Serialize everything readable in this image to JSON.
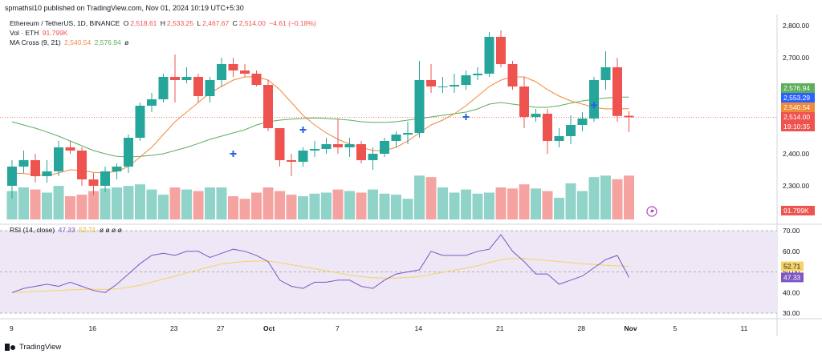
{
  "header": {
    "caption": "spmathsi10 published on TradingView.com, Nov 01, 2024 10:19 UTC+5:30"
  },
  "legend": {
    "symbol": "Ethereum / TetherUS, 1D, BINANCE",
    "o_label": "O",
    "o": "2,518.61",
    "h_label": "H",
    "h": "2,533.25",
    "l_label": "L",
    "l": "2,467.67",
    "c_label": "C",
    "c": "2,514.00",
    "change": "−4.61 (−0.18%)",
    "vol_label": "Vol · ETH",
    "vol_value": "91.799K",
    "ma_label": "MA Cross (9, 21)",
    "ma_fast": "2,540.54",
    "ma_slow": "2,576.94",
    "ma_null": "ø",
    "rsi_label": "RSI (14, close)",
    "rsi_value": "47.33",
    "rsi_ma": "52.71",
    "rsi_nulls": "ø ø ø ø"
  },
  "footer": {
    "brand": "TradingView"
  },
  "colors": {
    "up": "#26a69a",
    "down": "#ef5350",
    "vol_up": "#8fd3c9",
    "vol_down": "#f5a3a1",
    "ma_fast": "#f0893a",
    "ma_slow": "#5cae5c",
    "rsi": "#7e57c2",
    "rsi_ma": "#f5d365",
    "rsi_band": "#ede7f6",
    "cross": "#2f5fe0"
  },
  "chart_data": [
    {
      "type": "candlestick",
      "title": "Ethereum / TetherUS, 1D, BINANCE",
      "y_ticks": [
        "2,800.00",
        "2,700.00",
        "2,600.00",
        "2,500.00",
        "2,400.00",
        "2,300.00"
      ],
      "ylim": [
        2230,
        2830
      ],
      "x_ticks": [
        "9",
        "16",
        "23",
        "27",
        "Oct",
        "7",
        "14",
        "21",
        "28",
        "Nov",
        "5",
        "11"
      ],
      "x_tick_days": [
        0,
        7,
        14,
        18,
        22,
        28,
        35,
        42,
        49,
        53,
        57,
        63
      ],
      "grid": false,
      "candles": [
        {
          "d": 0,
          "o": 2300,
          "h": 2380,
          "l": 2260,
          "c": 2360
        },
        {
          "d": 1,
          "o": 2360,
          "h": 2410,
          "l": 2340,
          "c": 2380
        },
        {
          "d": 2,
          "o": 2380,
          "h": 2400,
          "l": 2310,
          "c": 2330
        },
        {
          "d": 3,
          "o": 2330,
          "h": 2380,
          "l": 2310,
          "c": 2345
        },
        {
          "d": 4,
          "o": 2345,
          "h": 2440,
          "l": 2330,
          "c": 2420
        },
        {
          "d": 5,
          "o": 2420,
          "h": 2440,
          "l": 2400,
          "c": 2410
        },
        {
          "d": 6,
          "o": 2410,
          "h": 2420,
          "l": 2300,
          "c": 2320
        },
        {
          "d": 7,
          "o": 2320,
          "h": 2340,
          "l": 2270,
          "c": 2300
        },
        {
          "d": 8,
          "o": 2300,
          "h": 2360,
          "l": 2280,
          "c": 2345
        },
        {
          "d": 9,
          "o": 2345,
          "h": 2370,
          "l": 2320,
          "c": 2360
        },
        {
          "d": 10,
          "o": 2360,
          "h": 2460,
          "l": 2340,
          "c": 2450
        },
        {
          "d": 11,
          "o": 2450,
          "h": 2560,
          "l": 2440,
          "c": 2550
        },
        {
          "d": 12,
          "o": 2550,
          "h": 2590,
          "l": 2530,
          "c": 2570
        },
        {
          "d": 13,
          "o": 2570,
          "h": 2650,
          "l": 2560,
          "c": 2640
        },
        {
          "d": 14,
          "o": 2640,
          "h": 2710,
          "l": 2560,
          "c": 2630
        },
        {
          "d": 15,
          "o": 2630,
          "h": 2670,
          "l": 2620,
          "c": 2640
        },
        {
          "d": 16,
          "o": 2640,
          "h": 2650,
          "l": 2560,
          "c": 2580
        },
        {
          "d": 17,
          "o": 2580,
          "h": 2640,
          "l": 2560,
          "c": 2630
        },
        {
          "d": 18,
          "o": 2630,
          "h": 2700,
          "l": 2610,
          "c": 2680
        },
        {
          "d": 19,
          "o": 2680,
          "h": 2700,
          "l": 2640,
          "c": 2660
        },
        {
          "d": 20,
          "o": 2660,
          "h": 2680,
          "l": 2640,
          "c": 2650
        },
        {
          "d": 21,
          "o": 2650,
          "h": 2660,
          "l": 2610,
          "c": 2615
        },
        {
          "d": 22,
          "o": 2615,
          "h": 2630,
          "l": 2470,
          "c": 2480
        },
        {
          "d": 23,
          "o": 2480,
          "h": 2480,
          "l": 2360,
          "c": 2380
        },
        {
          "d": 24,
          "o": 2380,
          "h": 2400,
          "l": 2330,
          "c": 2375
        },
        {
          "d": 25,
          "o": 2375,
          "h": 2420,
          "l": 2360,
          "c": 2410
        },
        {
          "d": 26,
          "o": 2410,
          "h": 2440,
          "l": 2390,
          "c": 2415
        },
        {
          "d": 27,
          "o": 2415,
          "h": 2450,
          "l": 2400,
          "c": 2430
        },
        {
          "d": 28,
          "o": 2430,
          "h": 2510,
          "l": 2400,
          "c": 2420
        },
        {
          "d": 29,
          "o": 2420,
          "h": 2450,
          "l": 2390,
          "c": 2430
        },
        {
          "d": 30,
          "o": 2430,
          "h": 2440,
          "l": 2370,
          "c": 2380
        },
        {
          "d": 31,
          "o": 2380,
          "h": 2420,
          "l": 2350,
          "c": 2400
        },
        {
          "d": 32,
          "o": 2400,
          "h": 2450,
          "l": 2390,
          "c": 2440
        },
        {
          "d": 33,
          "o": 2440,
          "h": 2470,
          "l": 2420,
          "c": 2460
        },
        {
          "d": 34,
          "o": 2460,
          "h": 2500,
          "l": 2430,
          "c": 2465
        },
        {
          "d": 35,
          "o": 2465,
          "h": 2690,
          "l": 2450,
          "c": 2630
        },
        {
          "d": 36,
          "o": 2630,
          "h": 2680,
          "l": 2590,
          "c": 2610
        },
        {
          "d": 37,
          "o": 2610,
          "h": 2640,
          "l": 2590,
          "c": 2610
        },
        {
          "d": 38,
          "o": 2610,
          "h": 2650,
          "l": 2590,
          "c": 2615
        },
        {
          "d": 39,
          "o": 2615,
          "h": 2660,
          "l": 2600,
          "c": 2645
        },
        {
          "d": 40,
          "o": 2645,
          "h": 2670,
          "l": 2630,
          "c": 2650
        },
        {
          "d": 41,
          "o": 2650,
          "h": 2780,
          "l": 2640,
          "c": 2765
        },
        {
          "d": 42,
          "o": 2765,
          "h": 2785,
          "l": 2670,
          "c": 2680
        },
        {
          "d": 43,
          "o": 2680,
          "h": 2690,
          "l": 2600,
          "c": 2610
        },
        {
          "d": 44,
          "o": 2610,
          "h": 2640,
          "l": 2480,
          "c": 2515
        },
        {
          "d": 45,
          "o": 2515,
          "h": 2540,
          "l": 2500,
          "c": 2525
        },
        {
          "d": 46,
          "o": 2525,
          "h": 2540,
          "l": 2400,
          "c": 2440
        },
        {
          "d": 47,
          "o": 2440,
          "h": 2480,
          "l": 2420,
          "c": 2455
        },
        {
          "d": 48,
          "o": 2455,
          "h": 2520,
          "l": 2430,
          "c": 2490
        },
        {
          "d": 49,
          "o": 2490,
          "h": 2530,
          "l": 2470,
          "c": 2510
        },
        {
          "d": 50,
          "o": 2510,
          "h": 2640,
          "l": 2500,
          "c": 2630
        },
        {
          "d": 51,
          "o": 2630,
          "h": 2720,
          "l": 2600,
          "c": 2670
        },
        {
          "d": 52,
          "o": 2670,
          "h": 2700,
          "l": 2500,
          "c": 2518
        },
        {
          "d": 53,
          "o": 2518.61,
          "h": 2533.25,
          "l": 2467.67,
          "c": 2514.0
        }
      ],
      "ma_fast_values": [
        2340,
        2338,
        2335,
        2332,
        2340,
        2350,
        2348,
        2342,
        2340,
        2345,
        2360,
        2390,
        2420,
        2460,
        2500,
        2530,
        2560,
        2590,
        2610,
        2630,
        2640,
        2640,
        2630,
        2600,
        2560,
        2520,
        2490,
        2465,
        2445,
        2430,
        2420,
        2410,
        2410,
        2420,
        2440,
        2465,
        2490,
        2505,
        2525,
        2550,
        2580,
        2610,
        2630,
        2640,
        2640,
        2625,
        2600,
        2580,
        2565,
        2555,
        2545,
        2540,
        2540.54,
        2540.54
      ],
      "ma_slow_values": [
        2500,
        2490,
        2480,
        2468,
        2455,
        2440,
        2425,
        2410,
        2400,
        2392,
        2390,
        2392,
        2395,
        2400,
        2410,
        2420,
        2432,
        2445,
        2455,
        2465,
        2475,
        2490,
        2500,
        2505,
        2508,
        2510,
        2512,
        2510,
        2508,
        2505,
        2500,
        2498,
        2498,
        2500,
        2505,
        2510,
        2515,
        2520,
        2525,
        2530,
        2540,
        2555,
        2560,
        2555,
        2550,
        2545,
        2545,
        2550,
        2558,
        2565,
        2570,
        2574,
        2576.94,
        2576.94
      ],
      "ma_right_labels": [
        "2,576.94",
        "2,553.29",
        "2,540.54",
        "2,514.00",
        "19:10:35"
      ],
      "ma_cross_days": [
        19,
        25,
        39,
        50
      ],
      "ma_cross_values": [
        2400,
        2475,
        2515,
        2552
      ]
    },
    {
      "type": "bar",
      "title": "Vol · ETH",
      "values": [
        0.55,
        0.62,
        0.58,
        0.52,
        0.65,
        0.45,
        0.48,
        0.55,
        0.6,
        0.62,
        0.65,
        0.68,
        0.58,
        0.48,
        0.62,
        0.58,
        0.55,
        0.62,
        0.62,
        0.45,
        0.4,
        0.52,
        0.62,
        0.55,
        0.48,
        0.45,
        0.5,
        0.52,
        0.58,
        0.55,
        0.52,
        0.58,
        0.5,
        0.48,
        0.4,
        0.85,
        0.82,
        0.62,
        0.52,
        0.58,
        0.5,
        0.52,
        0.62,
        0.6,
        0.68,
        0.6,
        0.55,
        0.42,
        0.7,
        0.55,
        0.82,
        0.85,
        0.78,
        0.85
      ],
      "current_label": "91.799K"
    },
    {
      "type": "line",
      "title": "RSI (14, close)",
      "y_ticks": [
        "70.00",
        "60.00",
        "50.00",
        "40.00",
        "30.00"
      ],
      "ylim": [
        29,
        71
      ],
      "band": [
        30,
        70
      ],
      "rsi_values": [
        40,
        42,
        43,
        44,
        43,
        45,
        43,
        41,
        40,
        44,
        49,
        54,
        58,
        59,
        58,
        60,
        60,
        57,
        59,
        61,
        60,
        58,
        55,
        46,
        43,
        42,
        45,
        45,
        46,
        46,
        43,
        42,
        46,
        49,
        50,
        51,
        60,
        58,
        58,
        58,
        60,
        61,
        68,
        60,
        55,
        49,
        49,
        44,
        46,
        48,
        52,
        56,
        58,
        47.33
      ],
      "rsi_ma_values": [
        40,
        40.2,
        40.5,
        40.8,
        41,
        41.3,
        41.5,
        41.6,
        41.5,
        41.8,
        42.5,
        43.5,
        45,
        46.5,
        48,
        49.5,
        51,
        52.5,
        53.8,
        54.5,
        55,
        55.3,
        55.2,
        54.5,
        53.5,
        52.5,
        51.5,
        50.5,
        49.5,
        48.5,
        47.8,
        47.2,
        47,
        47,
        47.3,
        47.8,
        48.8,
        49.8,
        50.8,
        51.8,
        53,
        54.5,
        56,
        56.5,
        56.5,
        56,
        55.5,
        55,
        54.5,
        54,
        53.6,
        53.2,
        52.9,
        52.71
      ],
      "rsi_right_labels": [
        "52.71",
        "47.33"
      ]
    }
  ]
}
